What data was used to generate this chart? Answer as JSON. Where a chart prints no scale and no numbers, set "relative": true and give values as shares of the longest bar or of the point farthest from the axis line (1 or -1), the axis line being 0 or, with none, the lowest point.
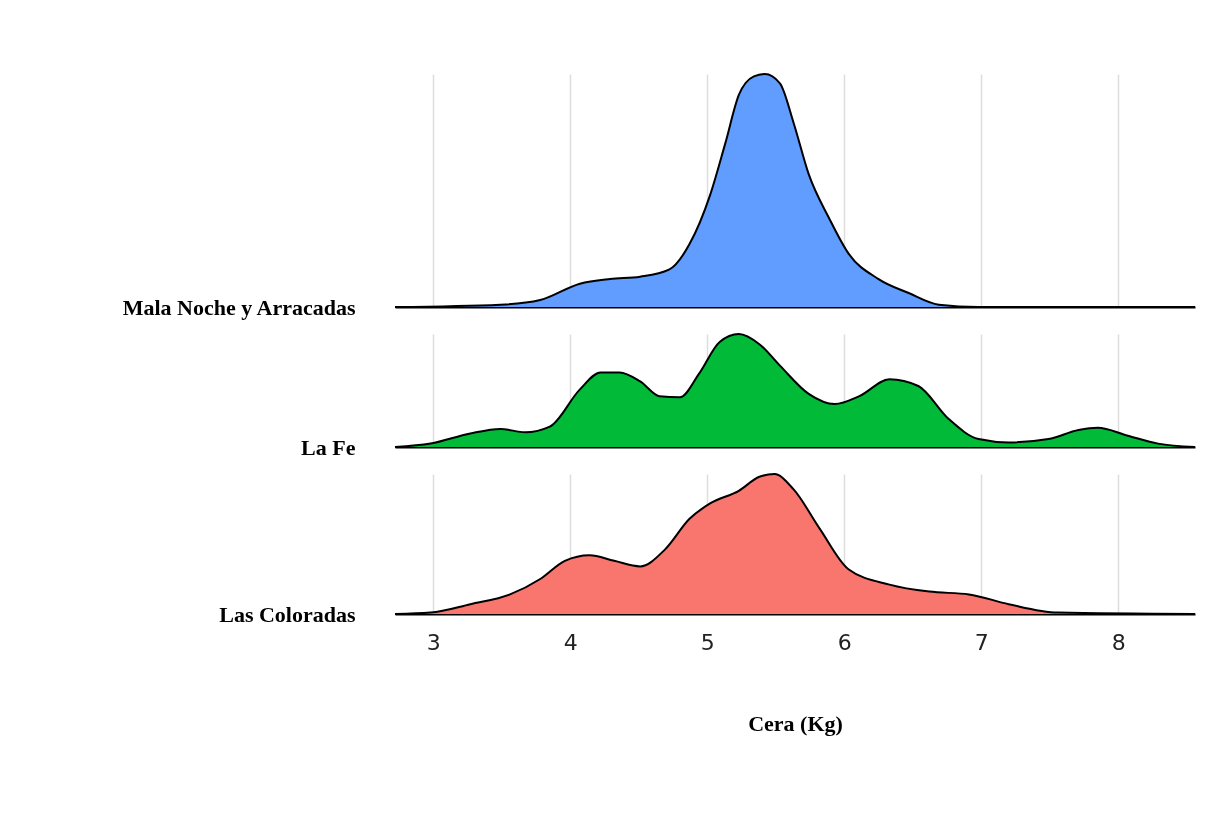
{
  "chart_data": [
    {
      "type": "area",
      "ylabel": "Mala Noche y Arracadas",
      "relative": true,
      "xlim": [
        2.72,
        8.56
      ],
      "xticks": [
        3,
        4,
        5,
        6,
        7,
        8
      ],
      "grid": "x",
      "tick_labels": false,
      "x": [
        2.72,
        3.49,
        3.78,
        4.07,
        4.29,
        4.51,
        4.72,
        4.87,
        5.02,
        5.13,
        5.23,
        5.34,
        5.42,
        5.53,
        5.63,
        5.74,
        5.89,
        6.03,
        6.25,
        6.47,
        6.69,
        6.98,
        8.56
      ],
      "series": [
        {
          "color": "#619cff",
          "values": [
            0,
            0.01,
            0.03,
            0.1,
            0.12,
            0.13,
            0.16,
            0.27,
            0.48,
            0.7,
            0.91,
            0.99,
            1,
            0.96,
            0.79,
            0.57,
            0.38,
            0.23,
            0.12,
            0.06,
            0.01,
            0,
            0
          ]
        }
      ]
    },
    {
      "type": "area",
      "ylabel": "La Fe",
      "relative": true,
      "xlim": [
        2.72,
        8.56
      ],
      "xticks": [
        3,
        4,
        5,
        6,
        7,
        8
      ],
      "grid": "x",
      "tick_labels": false,
      "x": [
        2.72,
        2.98,
        3.27,
        3.49,
        3.67,
        3.85,
        4.07,
        4.22,
        4.36,
        4.51,
        4.65,
        4.8,
        4.94,
        5.09,
        5.23,
        5.38,
        5.53,
        5.74,
        5.93,
        6.11,
        6.33,
        6.54,
        6.76,
        6.98,
        7.2,
        7.49,
        7.71,
        7.85,
        8.07,
        8.29,
        8.56
      ],
      "series": [
        {
          "color": "#00ba38",
          "values": [
            0,
            0.03,
            0.12,
            0.16,
            0.13,
            0.18,
            0.51,
            0.66,
            0.66,
            0.58,
            0.45,
            0.44,
            0.65,
            0.93,
            1,
            0.91,
            0.72,
            0.47,
            0.38,
            0.45,
            0.6,
            0.54,
            0.25,
            0.07,
            0.04,
            0.07,
            0.15,
            0.17,
            0.1,
            0.03,
            0
          ]
        }
      ]
    },
    {
      "type": "area",
      "ylabel": "Las Coloradas",
      "xlabel": "Cera (Kg)",
      "relative": true,
      "xlim": [
        2.72,
        8.56
      ],
      "xticks": [
        3,
        4,
        5,
        6,
        7,
        8
      ],
      "grid": "x",
      "tick_labels": "x",
      "x": [
        2.72,
        2.98,
        3.27,
        3.56,
        3.78,
        3.96,
        4.14,
        4.32,
        4.51,
        4.69,
        4.87,
        5.02,
        5.23,
        5.38,
        5.49,
        5.63,
        5.82,
        6.03,
        6.33,
        6.62,
        6.91,
        7.2,
        7.56,
        8.56
      ],
      "series": [
        {
          "color": "#f8766d",
          "values": [
            0,
            0.01,
            0.07,
            0.14,
            0.25,
            0.38,
            0.42,
            0.38,
            0.34,
            0.46,
            0.68,
            0.79,
            0.88,
            0.98,
            1,
            0.89,
            0.61,
            0.32,
            0.21,
            0.16,
            0.14,
            0.07,
            0.01,
            0
          ]
        }
      ]
    }
  ]
}
